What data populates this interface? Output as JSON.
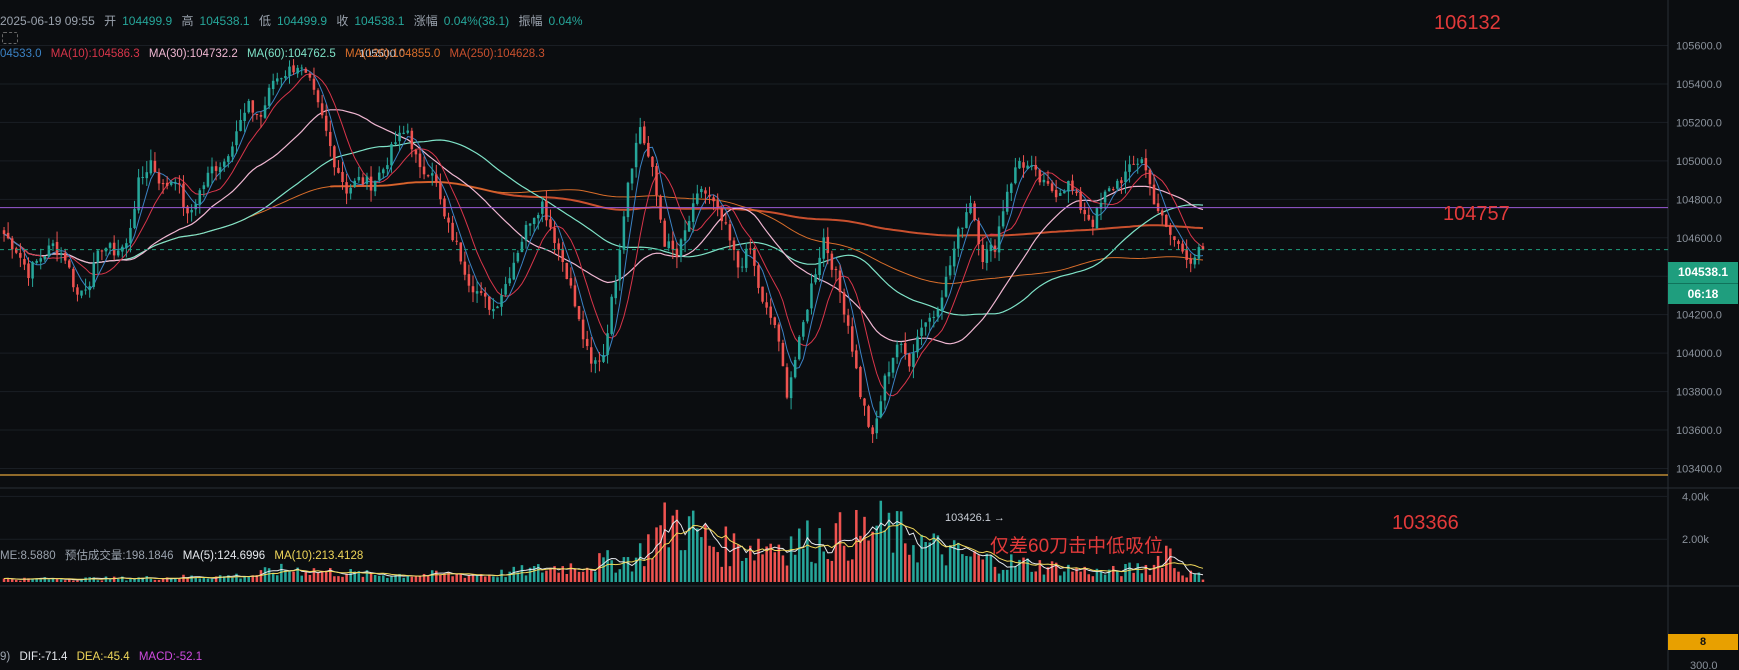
{
  "header": {
    "datetime": "2025-06-19 09:55",
    "open_label": "开",
    "open": "104499.9",
    "high_label": "高",
    "high": "104538.1",
    "low_label": "低",
    "low": "104499.9",
    "close_label": "收",
    "close": "104538.1",
    "change_label": "涨幅",
    "change": "0.04%(38.1)",
    "amplitude_label": "振幅",
    "amplitude": "0.04%"
  },
  "ma_legend": [
    {
      "text": "04533.0",
      "color": "#3b82c4"
    },
    {
      "text": "MA(10):104586.3",
      "color": "#d8354a"
    },
    {
      "text": "MA(30):104732.2",
      "color": "#f0b7d2"
    },
    {
      "text": "MA(60):104762.5",
      "color": "#7fe3c8"
    },
    {
      "text": "MA(120):104855.0",
      "color": "#d86d2a"
    },
    {
      "text": "MA(250):104628.3",
      "color": "#c9502e"
    }
  ],
  "volume_legend": {
    "vol": "ME:8.5880",
    "est": "预估成交量:198.1846",
    "ma5": "MA(5):124.6996",
    "ma10": "MA(10):213.4128"
  },
  "macd_legend": {
    "prefix": "9)",
    "dif": "DIF:-71.4",
    "dea": "DEA:-45.4",
    "macd": "MACD:-52.1"
  },
  "price_badge": {
    "price": "104538.1",
    "countdown": "06:18"
  },
  "volume_badge": "8",
  "chart_data": {
    "type": "candlestick",
    "price_axis": {
      "ticks": [
        105600,
        105400,
        105200,
        105000,
        104800,
        104600,
        104400,
        104200,
        104000,
        103800,
        103600,
        103400
      ],
      "tick_labels": [
        "105600.0",
        "105400.0",
        "105200.0",
        "105000.0",
        "104800.0",
        "104600.0",
        "104400.0",
        "104200.0",
        "104000.0",
        "103800.0",
        "103600.0",
        "103400.0"
      ],
      "range": [
        103340,
        105660
      ]
    },
    "volume_axis": {
      "ticks": [
        4000,
        2000
      ],
      "tick_labels": [
        "4.00k",
        "2.00k"
      ],
      "range": [
        0,
        4300
      ]
    },
    "macd_axis": {
      "tick_labels": [
        "300.0"
      ]
    },
    "annotations": {
      "high_marker": "105500.0",
      "low_marker": "103426.1",
      "level_top": "106132",
      "level_mid": "104757",
      "level_bottom": "103366",
      "note": "仅差60刀击中低吸位"
    },
    "lines": {
      "h_purple": 104757,
      "h_orange": 103366,
      "last_price": 104538.1
    },
    "colors": {
      "up": "#26a69a",
      "down": "#ef5350",
      "ma5": "#3b82c4",
      "ma10": "#d8354a",
      "ma30": "#f0b7d2",
      "ma60": "#7fe3c8",
      "ma120": "#d86d2a",
      "ma250": "#c9502e",
      "purple": "#9a5ad6",
      "orange": "#e0a33a",
      "annot": "#e23a3a"
    },
    "path_points": [
      [
        0,
        104620
      ],
      [
        3,
        104540
      ],
      [
        6,
        104420
      ],
      [
        9,
        104500
      ],
      [
        12,
        104560
      ],
      [
        15,
        104500
      ],
      [
        18,
        104300
      ],
      [
        21,
        104380
      ],
      [
        24,
        104560
      ],
      [
        27,
        104530
      ],
      [
        30,
        104560
      ],
      [
        33,
        104880
      ],
      [
        36,
        105000
      ],
      [
        39,
        104860
      ],
      [
        42,
        104920
      ],
      [
        45,
        104700
      ],
      [
        48,
        104840
      ],
      [
        51,
        104960
      ],
      [
        54,
        105000
      ],
      [
        57,
        105160
      ],
      [
        60,
        105280
      ],
      [
        63,
        105230
      ],
      [
        66,
        105420
      ],
      [
        69,
        105460
      ],
      [
        72,
        105500
      ],
      [
        75,
        105400
      ],
      [
        78,
        105220
      ],
      [
        81,
        105000
      ],
      [
        84,
        104850
      ],
      [
        87,
        104900
      ],
      [
        90,
        104880
      ],
      [
        93,
        104960
      ],
      [
        96,
        105100
      ],
      [
        99,
        105160
      ],
      [
        102,
        104940
      ],
      [
        105,
        104960
      ],
      [
        108,
        104700
      ],
      [
        111,
        104560
      ],
      [
        114,
        104380
      ],
      [
        117,
        104290
      ],
      [
        120,
        104230
      ],
      [
        123,
        104360
      ],
      [
        126,
        104540
      ],
      [
        129,
        104700
      ],
      [
        132,
        104780
      ],
      [
        135,
        104600
      ],
      [
        138,
        104420
      ],
      [
        141,
        104160
      ],
      [
        144,
        103930
      ],
      [
        147,
        104000
      ],
      [
        150,
        104400
      ],
      [
        153,
        104900
      ],
      [
        156,
        105180
      ],
      [
        159,
        104940
      ],
      [
        162,
        104580
      ],
      [
        165,
        104500
      ],
      [
        168,
        104690
      ],
      [
        171,
        104860
      ],
      [
        174,
        104770
      ],
      [
        177,
        104640
      ],
      [
        180,
        104450
      ],
      [
        183,
        104540
      ],
      [
        186,
        104250
      ],
      [
        189,
        104150
      ],
      [
        192,
        103800
      ],
      [
        195,
        104050
      ],
      [
        198,
        104350
      ],
      [
        201,
        104600
      ],
      [
        204,
        104400
      ],
      [
        207,
        104150
      ],
      [
        210,
        103790
      ],
      [
        213,
        103550
      ],
      [
        216,
        103860
      ],
      [
        219,
        104050
      ],
      [
        222,
        103960
      ],
      [
        225,
        104150
      ],
      [
        228,
        104200
      ],
      [
        231,
        104380
      ],
      [
        234,
        104620
      ],
      [
        237,
        104800
      ],
      [
        240,
        104500
      ],
      [
        243,
        104560
      ],
      [
        246,
        104850
      ],
      [
        249,
        105000
      ],
      [
        252,
        104950
      ],
      [
        255,
        104870
      ],
      [
        258,
        104840
      ],
      [
        261,
        104880
      ],
      [
        264,
        104760
      ],
      [
        267,
        104680
      ],
      [
        270,
        104820
      ],
      [
        273,
        104890
      ],
      [
        276,
        104950
      ],
      [
        279,
        105020
      ],
      [
        282,
        104800
      ],
      [
        285,
        104640
      ],
      [
        288,
        104560
      ],
      [
        291,
        104490
      ],
      [
        294,
        104538
      ]
    ],
    "volume_profile": [
      [
        0,
        160
      ],
      [
        30,
        200
      ],
      [
        60,
        350
      ],
      [
        66,
        600
      ],
      [
        72,
        700
      ],
      [
        90,
        400
      ],
      [
        120,
        420
      ],
      [
        140,
        900
      ],
      [
        155,
        1300
      ],
      [
        160,
        2600
      ],
      [
        165,
        3400
      ],
      [
        175,
        1900
      ],
      [
        195,
        2200
      ],
      [
        210,
        2600
      ],
      [
        215,
        2900
      ],
      [
        230,
        1700
      ],
      [
        240,
        1200
      ],
      [
        250,
        1000
      ],
      [
        270,
        500
      ],
      [
        282,
        900
      ],
      [
        285,
        2000
      ],
      [
        288,
        600
      ],
      [
        294,
        300
      ]
    ],
    "volume_range": [
      0,
      4300
    ]
  }
}
